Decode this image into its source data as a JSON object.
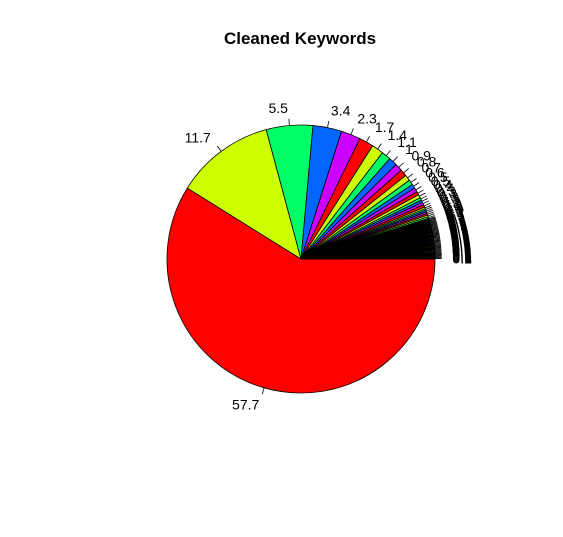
{
  "chart_data": {
    "type": "pie",
    "title": "Cleaned Keywords",
    "start_angle_deg": 0,
    "direction": "clockwise",
    "values": [
      57.7,
      11.7,
      5.5,
      3.4,
      2.3,
      1.7,
      1.4,
      1.1,
      1.0,
      0.9,
      0.8,
      0.7,
      0.6,
      0.5,
      0.5,
      0.4,
      0.4,
      0.3,
      0.3,
      0.3,
      0.3,
      0.2,
      0.2,
      0.2,
      0.2,
      0.2,
      0.2,
      0.2,
      0.1,
      0.1,
      0.1,
      0.1,
      0.1,
      0.1,
      0.1,
      0.1,
      0.1,
      0.1,
      0.1,
      0.1,
      0.1,
      0.1,
      0.1,
      0.1,
      0.1,
      0.1,
      0.1,
      0.1,
      0.1,
      0.1,
      0.1,
      0.1,
      0.1,
      0.1,
      0.1,
      0.1,
      0.1,
      0.1,
      0.1,
      0.1,
      0.1,
      0.1,
      0.1,
      0.1,
      0.1,
      0.1,
      0.1,
      0.1,
      0.1,
      0.1,
      0.1,
      0.1,
      0.1,
      0.1,
      0.1,
      0.1
    ],
    "labels": [
      "57.7",
      "11.7",
      "5.5",
      "3.4",
      "2.3",
      "1.7",
      "1.4",
      "1.1",
      "1",
      "0.9",
      "0.8",
      "0.7",
      "0.6",
      "0.5",
      "0.5",
      "0.4",
      "0.4",
      "0.3",
      "0.3",
      "0.3",
      "0.3",
      "0.2",
      "0.2",
      "0.2",
      "0.2",
      "0.2",
      "0.2",
      "0.2",
      "0.1",
      "0.1",
      "0.1",
      "0.1",
      "0.1",
      "0.1",
      "0.1",
      "0.1",
      "0.1",
      "0.1",
      "0.1",
      "0.1",
      "0.1",
      "0.1",
      "0.1",
      "0.1",
      "0.1",
      "0.1",
      "0.1",
      "0.1",
      "0.1",
      "0.1",
      "0.1",
      "0.1",
      "0.1",
      "0.1",
      "0.1",
      "0.1",
      "0.1",
      "0.1",
      "0.1",
      "0.1",
      "0.1",
      "0.1",
      "0.1",
      "0.1",
      "0.1",
      "0.1",
      "0.1",
      "0.1",
      "0.1",
      "0.1",
      "0.1",
      "0.1",
      "0.1",
      "0.1",
      "0.1",
      "0.1"
    ],
    "colors": [
      "#FF0000",
      "#CCFF00",
      "#00FF66",
      "#0066FF",
      "#CC00FF",
      "#FF0000",
      "#CCFF00",
      "#00FF66",
      "#0066FF",
      "#CC00FF",
      "#FF0000",
      "#CCFF00",
      "#00FF66",
      "#0066FF",
      "#CC00FF",
      "#FF0000",
      "#CCFF00",
      "#00FF66",
      "#0066FF",
      "#CC00FF",
      "#FF0000",
      "#CCFF00",
      "#00FF66",
      "#0066FF",
      "#CC00FF",
      "#FF0000",
      "#CCFF00",
      "#00FF66",
      "#0066FF",
      "#CC00FF"
    ],
    "slice_outline": "#000000",
    "legend": "none"
  }
}
